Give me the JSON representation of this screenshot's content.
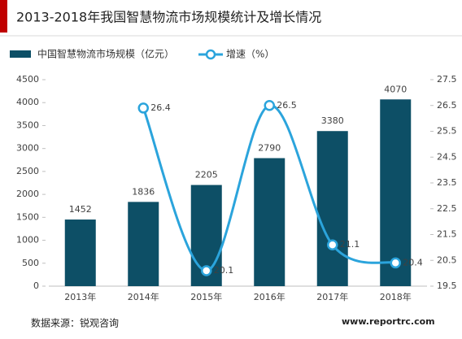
{
  "chart_data": {
    "type": "combo",
    "title": "2013-2018年我国智慧物流市场规模统计及增长情况",
    "categories": [
      "2013年",
      "2014年",
      "2015年",
      "2016年",
      "2017年",
      "2018年"
    ],
    "series": [
      {
        "name": "中国智慧物流市场规模（亿元）",
        "type": "bar",
        "color": "#0d4f66",
        "values": [
          1452,
          1836,
          2205,
          2790,
          3380,
          4070
        ]
      },
      {
        "name": "增速（%）",
        "type": "line",
        "axis": "y2",
        "color": "#2ba4dc",
        "values": [
          null,
          26.4,
          20.1,
          26.5,
          21.1,
          20.4
        ]
      }
    ],
    "ylim": [
      0,
      4500
    ],
    "yticks": [
      0,
      500,
      1000,
      1500,
      2000,
      2500,
      3000,
      3500,
      4000,
      4500
    ],
    "y2lim": [
      19.5,
      27.5
    ],
    "y2ticks": [
      19.5,
      20.5,
      21.5,
      22.5,
      23.5,
      24.5,
      25.5,
      26.5,
      27.5
    ],
    "source": "数据来源：锐观咨询",
    "website": "www.reportrc.com"
  }
}
